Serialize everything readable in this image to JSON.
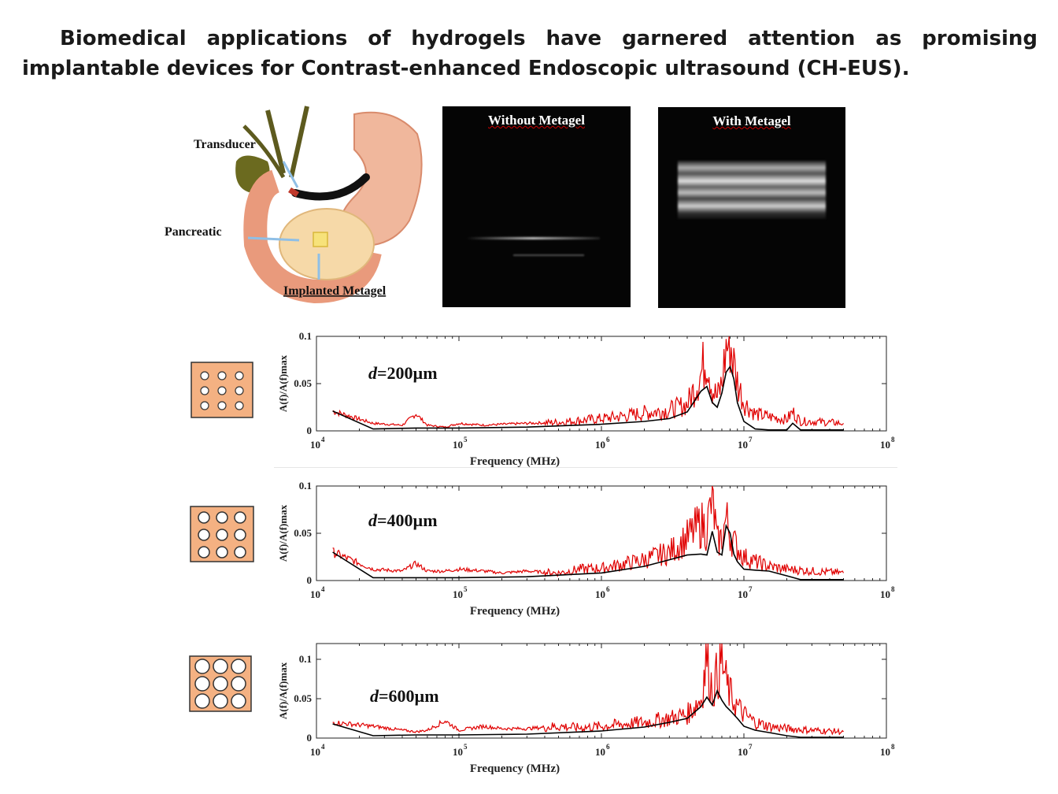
{
  "heading": "Biomedical applications of hydrogels have garnered attention as promising implantable devices for Contrast-enhanced Endoscopic ultrasound (CH-EUS).",
  "anatomy": {
    "transducer_label": "Transducer",
    "pancreatic_label": "Pancreatic",
    "implant_label": "Implanted Metagel"
  },
  "ultrasound": {
    "without_title": "Without Metagel",
    "with_title": "With Metagel"
  },
  "chart_data": [
    {
      "type": "line",
      "annotation": "d=200µm",
      "annotation_d": "d",
      "annotation_rest": "=200µm",
      "xlabel": "Frequency (MHz)",
      "ylabel": "A(f)/A(f)max",
      "x_scale": "log",
      "xlim": [
        10000,
        100000000
      ],
      "ylim": [
        0,
        0.1
      ],
      "xticks": [
        "10",
        "10",
        "10",
        "10",
        "10"
      ],
      "xtick_exps": [
        "4",
        "5",
        "6",
        "7",
        "8"
      ],
      "yticks": [
        "0",
        "0.05",
        "0.1"
      ],
      "grid": false,
      "series": [
        {
          "color": "#e00000",
          "x": [
            13000,
            25000,
            40000,
            50000,
            60000,
            80000,
            100000,
            150000,
            200000,
            300000,
            500000,
            700000,
            1000000,
            1500000,
            2000000,
            3000000,
            4000000,
            5000000,
            5500000,
            6000000,
            6500000,
            7000000,
            7500000,
            8000000,
            8500000,
            9000000,
            10000000,
            12000000,
            15000000,
            20000000,
            22000000,
            25000000,
            30000000,
            50000000
          ],
          "y": [
            0.021,
            0.008,
            0.006,
            0.018,
            0.006,
            0.004,
            0.008,
            0.006,
            0.007,
            0.008,
            0.009,
            0.011,
            0.013,
            0.016,
            0.019,
            0.022,
            0.028,
            0.06,
            0.082,
            0.045,
            0.035,
            0.05,
            0.088,
            0.095,
            0.07,
            0.052,
            0.03,
            0.018,
            0.015,
            0.012,
            0.02,
            0.01,
            0.01,
            0.008
          ]
        },
        {
          "color": "#000000",
          "x": [
            13000,
            25000,
            50000,
            100000,
            300000,
            1000000,
            2000000,
            3000000,
            4000000,
            5000000,
            5500000,
            6000000,
            6500000,
            7000000,
            7500000,
            8000000,
            8500000,
            9000000,
            10000000,
            12000000,
            15000000,
            20000000,
            22000000,
            25000000,
            50000000
          ],
          "y": [
            0.021,
            0.002,
            0.003,
            0.003,
            0.004,
            0.007,
            0.01,
            0.013,
            0.02,
            0.042,
            0.047,
            0.03,
            0.025,
            0.04,
            0.062,
            0.068,
            0.055,
            0.03,
            0.01,
            0.002,
            0.001,
            0.001,
            0.008,
            0.001,
            0.001
          ]
        }
      ]
    },
    {
      "type": "line",
      "annotation": "d=400µm",
      "annotation_d": "d",
      "annotation_rest": "=400µm",
      "xlabel": "Frequency (MHz)",
      "ylabel": "A(f)/A(f)max",
      "x_scale": "log",
      "xlim": [
        10000,
        100000000
      ],
      "ylim": [
        0,
        0.1
      ],
      "xticks": [
        "10",
        "10",
        "10",
        "10",
        "10"
      ],
      "xtick_exps": [
        "4",
        "5",
        "6",
        "7",
        "8"
      ],
      "yticks": [
        "0",
        "0.05",
        "0.1"
      ],
      "grid": false,
      "series": [
        {
          "color": "#e00000",
          "x": [
            13000,
            25000,
            40000,
            50000,
            60000,
            80000,
            100000,
            150000,
            200000,
            300000,
            500000,
            700000,
            1000000,
            1500000,
            2000000,
            3000000,
            4000000,
            5000000,
            5500000,
            6000000,
            6500000,
            7000000,
            7500000,
            8000000,
            8500000,
            9000000,
            10000000,
            12000000,
            15000000,
            20000000,
            30000000,
            50000000
          ],
          "y": [
            0.03,
            0.012,
            0.01,
            0.018,
            0.01,
            0.01,
            0.012,
            0.01,
            0.008,
            0.01,
            0.008,
            0.012,
            0.013,
            0.018,
            0.022,
            0.03,
            0.045,
            0.06,
            0.055,
            0.088,
            0.04,
            0.045,
            0.065,
            0.05,
            0.04,
            0.035,
            0.025,
            0.02,
            0.015,
            0.012,
            0.01,
            0.008
          ]
        },
        {
          "color": "#000000",
          "x": [
            13000,
            25000,
            50000,
            100000,
            300000,
            1000000,
            2000000,
            3000000,
            4000000,
            5000000,
            5500000,
            6000000,
            6500000,
            7000000,
            7500000,
            8000000,
            8500000,
            9000000,
            10000000,
            12000000,
            15000000,
            20000000,
            25000000,
            50000000
          ],
          "y": [
            0.03,
            0.003,
            0.003,
            0.003,
            0.004,
            0.008,
            0.015,
            0.022,
            0.027,
            0.028,
            0.027,
            0.052,
            0.03,
            0.027,
            0.058,
            0.05,
            0.028,
            0.02,
            0.012,
            0.011,
            0.01,
            0.005,
            0.001,
            0.001
          ]
        }
      ]
    },
    {
      "type": "line",
      "annotation": "d=600µm",
      "annotation_d": "d",
      "annotation_rest": "=600µm",
      "xlabel": "Frequency (MHz)",
      "ylabel": "A(f)/A(f)max",
      "x_scale": "log",
      "xlim": [
        10000,
        100000000
      ],
      "ylim": [
        0,
        0.12
      ],
      "xticks": [
        "10",
        "10",
        "10",
        "10",
        "10"
      ],
      "xtick_exps": [
        "4",
        "5",
        "6",
        "7",
        "8"
      ],
      "yticks": [
        "0",
        "0.05",
        "0.1"
      ],
      "grid": false,
      "series": [
        {
          "color": "#e00000",
          "x": [
            13000,
            25000,
            40000,
            50000,
            60000,
            80000,
            100000,
            150000,
            200000,
            300000,
            500000,
            700000,
            1000000,
            1500000,
            2000000,
            3000000,
            4000000,
            5000000,
            5500000,
            6000000,
            6500000,
            7000000,
            7500000,
            8000000,
            9000000,
            10000000,
            12000000,
            15000000,
            20000000,
            30000000,
            50000000
          ],
          "y": [
            0.02,
            0.015,
            0.01,
            0.008,
            0.01,
            0.022,
            0.01,
            0.015,
            0.012,
            0.012,
            0.015,
            0.013,
            0.015,
            0.018,
            0.02,
            0.025,
            0.03,
            0.05,
            0.105,
            0.06,
            0.08,
            0.1,
            0.07,
            0.055,
            0.04,
            0.03,
            0.02,
            0.015,
            0.012,
            0.01,
            0.008
          ]
        },
        {
          "color": "#000000",
          "x": [
            13000,
            25000,
            50000,
            100000,
            300000,
            1000000,
            2000000,
            3000000,
            4000000,
            5000000,
            5500000,
            6000000,
            6500000,
            7000000,
            7500000,
            8000000,
            9000000,
            10000000,
            12000000,
            15000000,
            20000000,
            25000000,
            50000000
          ],
          "y": [
            0.018,
            0.003,
            0.004,
            0.004,
            0.005,
            0.009,
            0.014,
            0.02,
            0.025,
            0.04,
            0.052,
            0.042,
            0.06,
            0.048,
            0.04,
            0.035,
            0.025,
            0.015,
            0.01,
            0.007,
            0.003,
            0.001,
            0.001
          ]
        }
      ]
    }
  ]
}
